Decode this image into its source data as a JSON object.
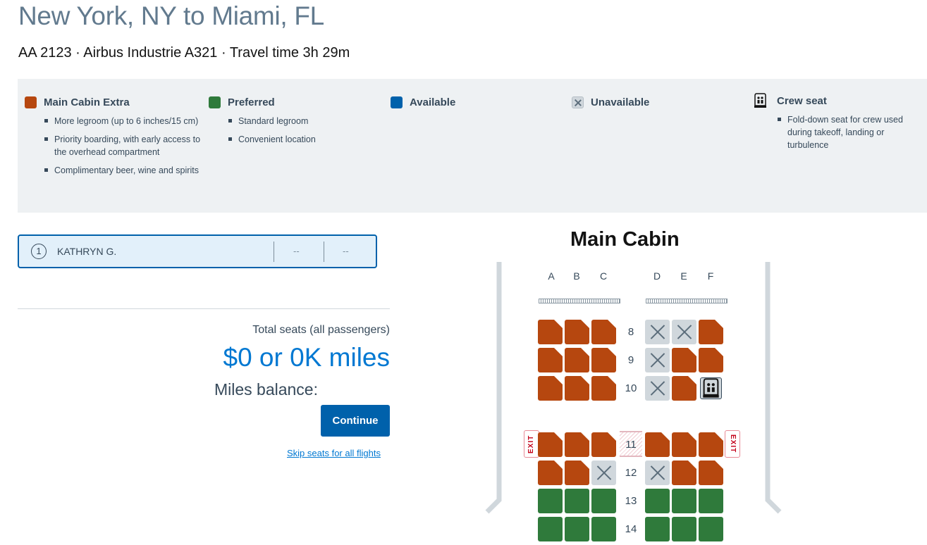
{
  "header": {
    "route": "New York, NY to Miami, FL",
    "flight_info": "AA 2123 · Airbus Industrie A321 · Travel time 3h 29m"
  },
  "legend": {
    "items": [
      {
        "label": "Main Cabin Extra",
        "color": "#b6470f",
        "bullets": [
          "More legroom (up to 6 inches/15 cm)",
          "Priority boarding, with early access to the overhead compartment",
          "Complimentary beer, wine and spirits"
        ]
      },
      {
        "label": "Preferred",
        "color": "#2f7a3b",
        "bullets": [
          "Standard legroom",
          "Convenient location"
        ]
      },
      {
        "label": "Available",
        "color": "#0061ab",
        "bullets": []
      },
      {
        "label": "Unavailable",
        "color": "#d0d7dc",
        "icon": "x-icon",
        "bullets": []
      },
      {
        "label": "Crew seat",
        "icon": "crew-seat-icon",
        "bullets": [
          "Fold-down seat for crew used during takeoff, landing or turbulence"
        ]
      }
    ]
  },
  "passenger": {
    "number": "1",
    "name": "KATHRYN G.",
    "seat_1": "--",
    "seat_2": "--"
  },
  "summary": {
    "total_label": "Total seats (all passengers)",
    "total_price": "$0 or 0K miles",
    "miles_balance": "Miles balance:",
    "continue_label": "Continue",
    "skip_label": "Skip seats for all flights"
  },
  "seatmap": {
    "cabin_title": "Main Cabin",
    "columns": [
      "A",
      "B",
      "C",
      "D",
      "E",
      "F"
    ],
    "exit_label": "EXIT",
    "rows": [
      {
        "number": "8",
        "seats": [
          "mce",
          "mce",
          "mce",
          "unav",
          "unav",
          "mce"
        ]
      },
      {
        "number": "9",
        "seats": [
          "mce",
          "mce",
          "mce",
          "unav",
          "mce",
          "mce"
        ]
      },
      {
        "number": "10",
        "seats": [
          "mce",
          "mce",
          "mce",
          "unav",
          "mce",
          "crew"
        ]
      },
      {
        "number": "11",
        "seats": [
          "mce",
          "mce",
          "mce",
          "mce",
          "mce",
          "mce"
        ],
        "exit": true
      },
      {
        "number": "12",
        "seats": [
          "mce",
          "mce",
          "unav",
          "unav",
          "mce",
          "mce"
        ]
      },
      {
        "number": "13",
        "seats": [
          "pref",
          "pref",
          "pref",
          "pref",
          "pref",
          "pref"
        ]
      },
      {
        "number": "14",
        "seats": [
          "pref",
          "pref",
          "pref",
          "pref",
          "pref",
          "pref"
        ]
      }
    ]
  }
}
